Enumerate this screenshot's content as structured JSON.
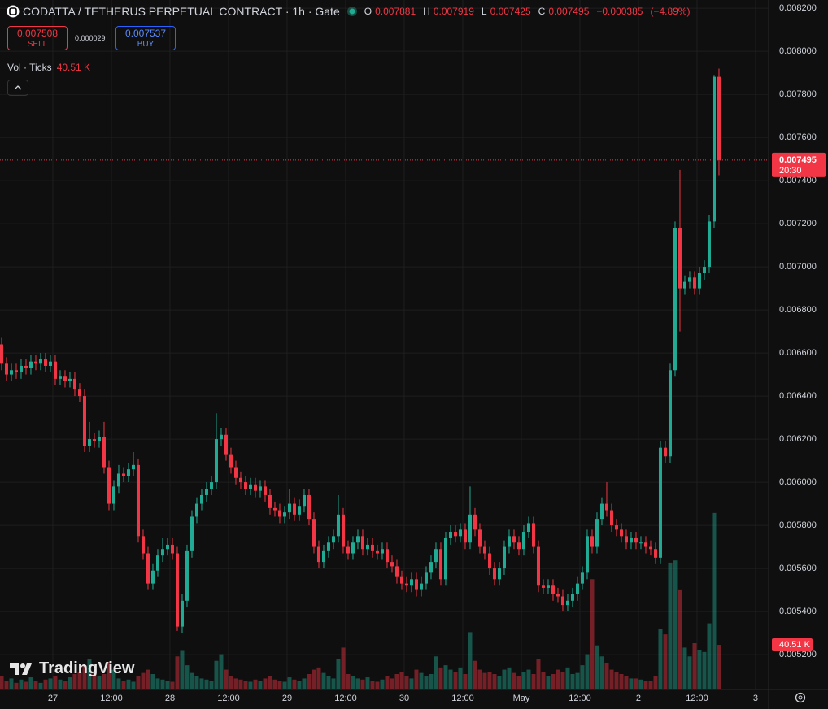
{
  "chart_data": {
    "type": "candlestick",
    "title": "CODATTA / TETHERUS PERPETUAL CONTRACT · 1h · Gate",
    "ohlc_letters": [
      "O",
      "H",
      "L",
      "C"
    ],
    "change": {
      "value": -0.000385,
      "label": "−0.000385"
    },
    "change_percent": {
      "value": -4.89,
      "label": "(−4.89%)"
    },
    "sell": {
      "price": 0.007508,
      "label": "SELL"
    },
    "spread": 2.9e-05,
    "buy": {
      "price": 0.007537,
      "label": "BUY"
    },
    "up_color": "#22ab94",
    "down_color": "#f23645",
    "open": [
      0.00664,
      0.00655,
      0.0065,
      0.00652,
      0.00651,
      0.00654,
      0.00653,
      0.00656,
      0.00655,
      0.00657,
      0.00654,
      0.00656,
      0.00648,
      0.00649,
      0.00647,
      0.00648,
      0.00643,
      0.0064,
      0.00617,
      0.0062,
      0.00619,
      0.00621,
      0.00607,
      0.0059,
      0.00598,
      0.00604,
      0.00603,
      0.00606,
      0.00608,
      0.00575,
      0.00567,
      0.00553,
      0.00559,
      0.00566,
      0.00569,
      0.00571,
      0.00567,
      0.00533,
      0.00545,
      0.00568,
      0.00584,
      0.0059,
      0.00594,
      0.00597,
      0.006,
      0.0062,
      0.00622,
      0.00613,
      0.00607,
      0.00602,
      0.006,
      0.00597,
      0.00599,
      0.00596,
      0.00598,
      0.00594,
      0.00588,
      0.00587,
      0.00584,
      0.00586,
      0.0059,
      0.00585,
      0.00589,
      0.00594,
      0.00583,
      0.0057,
      0.00563,
      0.00568,
      0.00572,
      0.00575,
      0.00585,
      0.0057,
      0.00567,
      0.00572,
      0.00575,
      0.00569,
      0.00571,
      0.00568,
      0.00567,
      0.00569,
      0.00563,
      0.00561,
      0.00556,
      0.00553,
      0.00552,
      0.00555,
      0.0055,
      0.00553,
      0.00558,
      0.00563,
      0.00569,
      0.00555,
      0.00574,
      0.00577,
      0.00575,
      0.00578,
      0.00572,
      0.00585,
      0.00578,
      0.0057,
      0.00567,
      0.0056,
      0.00555,
      0.0056,
      0.0057,
      0.00575,
      0.00572,
      0.00569,
      0.00577,
      0.00581,
      0.0057,
      0.00552,
      0.00551,
      0.00552,
      0.00548,
      0.00547,
      0.00543,
      0.00545,
      0.00548,
      0.00553,
      0.00558,
      0.00575,
      0.0057,
      0.00583,
      0.0059,
      0.00587,
      0.0058,
      0.00578,
      0.00575,
      0.00572,
      0.00574,
      0.00572,
      0.00572,
      0.0057,
      0.00569,
      0.00565,
      0.00616,
      0.00612,
      0.00652,
      0.00718,
      0.0069,
      0.00693,
      0.00695,
      0.0069,
      0.00697,
      0.007,
      0.00721,
      0.007881
    ],
    "high": [
      0.00667,
      0.00658,
      0.00655,
      0.00655,
      0.00657,
      0.00657,
      0.00659,
      0.00659,
      0.0066,
      0.0066,
      0.00659,
      0.00659,
      0.00652,
      0.00652,
      0.00651,
      0.00651,
      0.00646,
      0.00643,
      0.00628,
      0.00623,
      0.00624,
      0.00628,
      0.0061,
      0.00601,
      0.00608,
      0.00607,
      0.00609,
      0.00614,
      0.00611,
      0.00578,
      0.0057,
      0.00562,
      0.00569,
      0.00574,
      0.00574,
      0.00574,
      0.0057,
      0.00548,
      0.00571,
      0.00587,
      0.00593,
      0.00597,
      0.006,
      0.00603,
      0.00632,
      0.00625,
      0.00625,
      0.00616,
      0.0061,
      0.00605,
      0.00603,
      0.00602,
      0.00602,
      0.00601,
      0.00601,
      0.00597,
      0.00591,
      0.0059,
      0.00589,
      0.00597,
      0.00593,
      0.00592,
      0.00597,
      0.00597,
      0.00586,
      0.00573,
      0.00571,
      0.00575,
      0.00578,
      0.00594,
      0.00588,
      0.00573,
      0.00575,
      0.00578,
      0.00578,
      0.00574,
      0.00574,
      0.00571,
      0.00572,
      0.00572,
      0.00566,
      0.00564,
      0.00559,
      0.00556,
      0.00558,
      0.00558,
      0.00556,
      0.00561,
      0.00566,
      0.00572,
      0.00572,
      0.00577,
      0.0058,
      0.0058,
      0.00581,
      0.00581,
      0.00598,
      0.00588,
      0.00581,
      0.00573,
      0.0057,
      0.00563,
      0.00563,
      0.00573,
      0.00578,
      0.00578,
      0.00575,
      0.0058,
      0.00584,
      0.00584,
      0.00573,
      0.00555,
      0.00555,
      0.00555,
      0.00551,
      0.0055,
      0.00548,
      0.00551,
      0.00556,
      0.00561,
      0.00578,
      0.00578,
      0.00586,
      0.00593,
      0.006,
      0.0059,
      0.00583,
      0.00581,
      0.00578,
      0.00577,
      0.00577,
      0.00575,
      0.00575,
      0.00573,
      0.00572,
      0.00619,
      0.00619,
      0.00655,
      0.00721,
      0.00745,
      0.00696,
      0.00698,
      0.00698,
      0.007,
      0.00703,
      0.00724,
      0.00789,
      0.007919
    ],
    "low": [
      0.00652,
      0.00647,
      0.00647,
      0.00648,
      0.00648,
      0.0065,
      0.0065,
      0.00652,
      0.00652,
      0.00651,
      0.00651,
      0.00645,
      0.00645,
      0.00644,
      0.00644,
      0.0064,
      0.00637,
      0.00614,
      0.00614,
      0.00616,
      0.00616,
      0.00604,
      0.00587,
      0.00587,
      0.00595,
      0.006,
      0.006,
      0.00603,
      0.00572,
      0.00564,
      0.0055,
      0.0055,
      0.00556,
      0.00563,
      0.00566,
      0.00564,
      0.00531,
      0.0053,
      0.00542,
      0.00565,
      0.00581,
      0.00587,
      0.00591,
      0.00594,
      0.00597,
      0.00617,
      0.0061,
      0.00604,
      0.00599,
      0.00597,
      0.00594,
      0.00594,
      0.00593,
      0.00593,
      0.00591,
      0.00585,
      0.00584,
      0.00581,
      0.00581,
      0.00583,
      0.00582,
      0.00582,
      0.00586,
      0.0058,
      0.00567,
      0.0056,
      0.0056,
      0.00565,
      0.00569,
      0.00572,
      0.00567,
      0.00564,
      0.00564,
      0.00569,
      0.00566,
      0.00566,
      0.00565,
      0.00564,
      0.00564,
      0.0056,
      0.00558,
      0.00553,
      0.0055,
      0.00549,
      0.00549,
      0.00547,
      0.00547,
      0.0055,
      0.00555,
      0.0056,
      0.00552,
      0.00552,
      0.00571,
      0.00572,
      0.00572,
      0.00569,
      0.00569,
      0.00575,
      0.00567,
      0.00564,
      0.00557,
      0.00552,
      0.00552,
      0.00557,
      0.00567,
      0.00569,
      0.00566,
      0.00566,
      0.00574,
      0.00567,
      0.00549,
      0.00548,
      0.00548,
      0.00545,
      0.00544,
      0.0054,
      0.0054,
      0.00542,
      0.00545,
      0.0055,
      0.00555,
      0.00567,
      0.00567,
      0.0058,
      0.00584,
      0.00577,
      0.00575,
      0.00572,
      0.00569,
      0.00569,
      0.00569,
      0.00569,
      0.00567,
      0.00566,
      0.00562,
      0.00562,
      0.00609,
      0.00609,
      0.00649,
      0.0067,
      0.00687,
      0.0069,
      0.00687,
      0.00687,
      0.00694,
      0.00697,
      0.00718,
      0.007425
    ],
    "close": [
      0.00655,
      0.0065,
      0.00652,
      0.00651,
      0.00654,
      0.00653,
      0.00656,
      0.00655,
      0.00657,
      0.00654,
      0.00656,
      0.00648,
      0.00649,
      0.00647,
      0.00648,
      0.00643,
      0.0064,
      0.00617,
      0.0062,
      0.00619,
      0.00621,
      0.00607,
      0.0059,
      0.00598,
      0.00604,
      0.00603,
      0.00606,
      0.00608,
      0.00575,
      0.00567,
      0.00553,
      0.00559,
      0.00566,
      0.00569,
      0.00571,
      0.00567,
      0.00533,
      0.00545,
      0.00568,
      0.00584,
      0.0059,
      0.00594,
      0.00597,
      0.006,
      0.0062,
      0.00622,
      0.00613,
      0.00607,
      0.00602,
      0.006,
      0.00597,
      0.00599,
      0.00596,
      0.00598,
      0.00594,
      0.00588,
      0.00587,
      0.00584,
      0.00586,
      0.0059,
      0.00585,
      0.00589,
      0.00594,
      0.00583,
      0.0057,
      0.00563,
      0.00568,
      0.00572,
      0.00575,
      0.00585,
      0.0057,
      0.00567,
      0.00572,
      0.00575,
      0.00569,
      0.00571,
      0.00568,
      0.00567,
      0.00569,
      0.00563,
      0.00561,
      0.00556,
      0.00553,
      0.00552,
      0.00555,
      0.0055,
      0.00553,
      0.00558,
      0.00563,
      0.00569,
      0.00555,
      0.00574,
      0.00577,
      0.00575,
      0.00578,
      0.00572,
      0.00585,
      0.00578,
      0.0057,
      0.00567,
      0.0056,
      0.00555,
      0.0056,
      0.0057,
      0.00575,
      0.00572,
      0.00569,
      0.00577,
      0.00581,
      0.0057,
      0.00552,
      0.00551,
      0.00552,
      0.00548,
      0.00547,
      0.00543,
      0.00545,
      0.00548,
      0.00553,
      0.00558,
      0.00575,
      0.0057,
      0.00583,
      0.0059,
      0.00587,
      0.0058,
      0.00578,
      0.00575,
      0.00572,
      0.00574,
      0.00572,
      0.00572,
      0.0057,
      0.00569,
      0.00565,
      0.00616,
      0.00612,
      0.00652,
      0.00718,
      0.0069,
      0.00693,
      0.00695,
      0.0069,
      0.00697,
      0.007,
      0.00721,
      0.007881,
      0.007495
    ],
    "volume": {
      "name": "Vol · Ticks",
      "last_label": "40.51 K",
      "vlim": [
        0,
        280
      ],
      "values": [
        12,
        8,
        10,
        6,
        9,
        7,
        11,
        8,
        6,
        9,
        10,
        12,
        9,
        8,
        11,
        14,
        16,
        22,
        28,
        15,
        12,
        14,
        25,
        18,
        10,
        8,
        9,
        7,
        12,
        15,
        18,
        14,
        10,
        9,
        8,
        7,
        30,
        35,
        22,
        15,
        12,
        10,
        9,
        8,
        26,
        32,
        18,
        12,
        10,
        9,
        8,
        7,
        9,
        8,
        10,
        12,
        9,
        8,
        7,
        11,
        9,
        8,
        10,
        14,
        18,
        20,
        15,
        12,
        10,
        28,
        38,
        14,
        12,
        10,
        9,
        11,
        8,
        7,
        9,
        12,
        10,
        14,
        16,
        12,
        10,
        18,
        15,
        12,
        14,
        30,
        20,
        22,
        18,
        16,
        20,
        14,
        52,
        26,
        18,
        15,
        16,
        14,
        12,
        18,
        20,
        15,
        12,
        16,
        18,
        14,
        28,
        16,
        12,
        14,
        18,
        16,
        20,
        14,
        15,
        22,
        32,
        100,
        40,
        30,
        24,
        18,
        16,
        14,
        12,
        10,
        10,
        9,
        8,
        8,
        12,
        55,
        50,
        115,
        117,
        90,
        38,
        30,
        42,
        36,
        34,
        60,
        160,
        40.51
      ]
    },
    "last_price_time": "20:30",
    "ylim": [
      0.005038,
      0.008238
    ],
    "yticks": [
      {
        "value": 0.0082,
        "label": "0.008200"
      },
      {
        "value": 0.008,
        "label": "0.008000"
      },
      {
        "value": 0.0078,
        "label": "0.007800"
      },
      {
        "value": 0.0076,
        "label": "0.007600"
      },
      {
        "value": 0.0074,
        "label": "0.007400"
      },
      {
        "value": 0.0072,
        "label": "0.007200"
      },
      {
        "value": 0.007,
        "label": "0.007000"
      },
      {
        "value": 0.0068,
        "label": "0.006800"
      },
      {
        "value": 0.0066,
        "label": "0.006600"
      },
      {
        "value": 0.0064,
        "label": "0.006400"
      },
      {
        "value": 0.0062,
        "label": "0.006200"
      },
      {
        "value": 0.006,
        "label": "0.006000"
      },
      {
        "value": 0.0058,
        "label": "0.005800"
      },
      {
        "value": 0.0056,
        "label": "0.005600"
      },
      {
        "value": 0.0054,
        "label": "0.005400"
      },
      {
        "value": 0.0052,
        "label": "0.005200"
      }
    ],
    "xlim": [
      -0.33,
      157.17
    ],
    "xticks": [
      {
        "value": 10.5,
        "label": "27"
      },
      {
        "value": 22.5,
        "label": "12:00"
      },
      {
        "value": 34.5,
        "label": "28"
      },
      {
        "value": 46.5,
        "label": "12:00"
      },
      {
        "value": 58.5,
        "label": "29"
      },
      {
        "value": 70.5,
        "label": "12:00"
      },
      {
        "value": 82.5,
        "label": "30"
      },
      {
        "value": 94.5,
        "label": "12:00"
      },
      {
        "value": 106.5,
        "label": "May"
      },
      {
        "value": 118.5,
        "label": "12:00"
      },
      {
        "value": 130.5,
        "label": "2"
      },
      {
        "value": 142.5,
        "label": "12:00"
      },
      {
        "value": 154.5,
        "label": "3"
      }
    ],
    "grid": true,
    "watermark": "TradingView"
  }
}
